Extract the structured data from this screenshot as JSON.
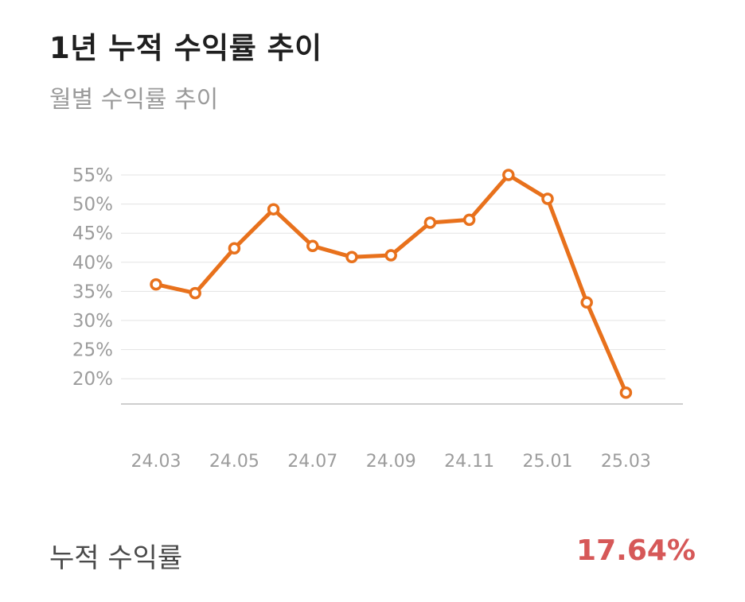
{
  "header": {
    "title": "1년 누적 수익률 추이",
    "subtitle": "월별 수익률 추이"
  },
  "chart_data": {
    "type": "line",
    "title": "1년 누적 수익률 추이",
    "subtitle": "월별 수익률 추이",
    "xlabel": "",
    "ylabel": "",
    "x": [
      "24.03",
      "24.04",
      "24.05",
      "24.06",
      "24.07",
      "24.08",
      "24.09",
      "24.10",
      "24.11",
      "24.12",
      "25.01",
      "25.02",
      "25.03"
    ],
    "x_tick_labels": [
      "24.03",
      "24.05",
      "24.07",
      "24.09",
      "24.11",
      "25.01",
      "25.03"
    ],
    "y_tick_labels": [
      "55%",
      "50%",
      "45%",
      "40%",
      "35%",
      "30%",
      "25%",
      "20%"
    ],
    "y_ticks": [
      55,
      50,
      45,
      40,
      35,
      30,
      25,
      20
    ],
    "ylim": [
      15.8,
      55
    ],
    "y_unit": "%",
    "series": [
      {
        "values": [
          36.2,
          34.7,
          42.4,
          49.1,
          42.8,
          40.9,
          41.2,
          46.8,
          47.3,
          55.0,
          50.9,
          33.1,
          17.6
        ]
      }
    ],
    "grid": true,
    "legend": "none",
    "line_color": "#e8711c",
    "marker_fill": "#ffffff"
  },
  "footer": {
    "label": "누적 수익률",
    "value": "17.64%",
    "value_color": "#d65858"
  }
}
